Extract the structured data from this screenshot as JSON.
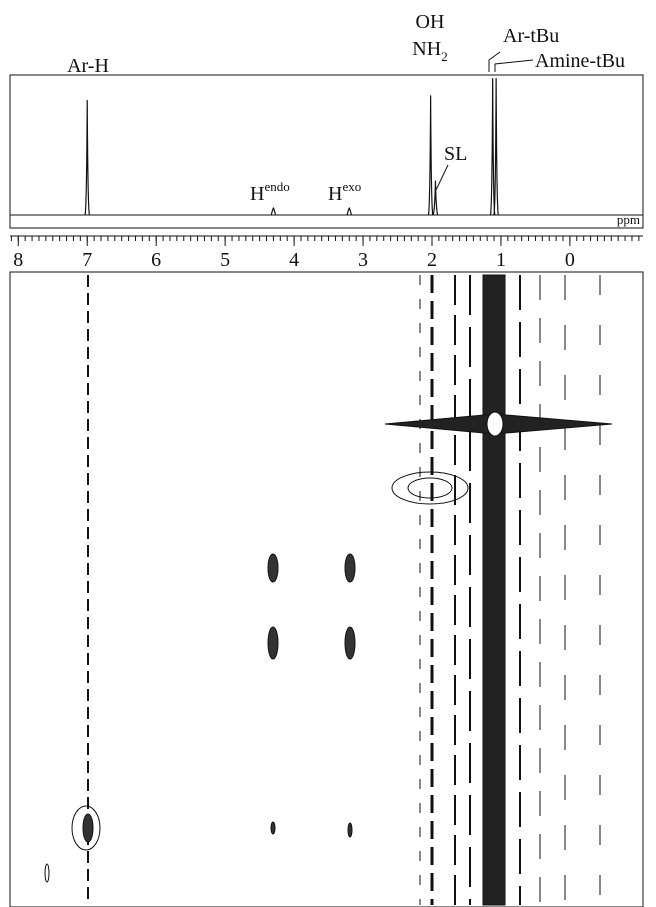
{
  "chart_data": {
    "type": "spectrum",
    "x_label": "ppm",
    "xlim": [
      8.12,
      -1.06
    ],
    "xticks": [
      8,
      7,
      6,
      5,
      4,
      3,
      2,
      1,
      0
    ],
    "ylim": [
      0,
      120
    ],
    "x": [
      7.0,
      4.3,
      3.2,
      2.02,
      1.95,
      1.12,
      1.07
    ],
    "values": [
      100,
      6,
      6,
      104,
      30,
      119,
      119
    ],
    "color": "#111111",
    "annotations": [
      {
        "text": "Ar-H"
      },
      {
        "text": "H",
        "sup": "endo"
      },
      {
        "text": "H",
        "sup": "exo"
      },
      {
        "text": "SL"
      },
      {
        "text": "OH"
      },
      {
        "text": "NH",
        "sub": "2"
      },
      {
        "text": "Ar-tBu"
      },
      {
        "text": "Amine-tBu"
      }
    ]
  }
}
